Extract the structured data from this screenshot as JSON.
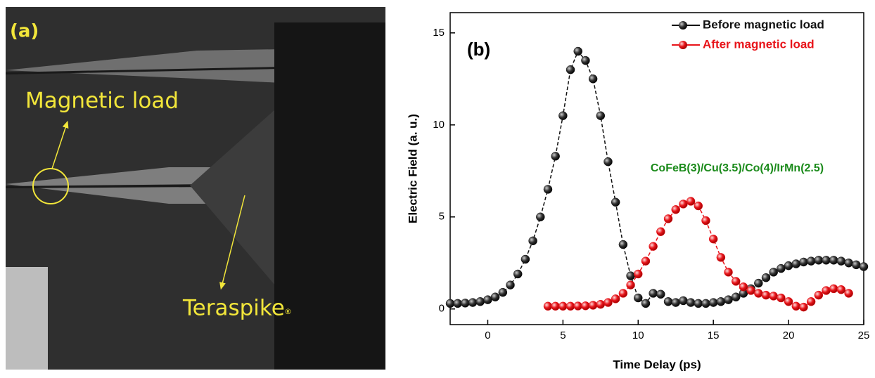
{
  "photo": {
    "label": "(a)",
    "annotations": [
      "Magnetic load",
      "Teraspike",
      "®"
    ]
  },
  "chart_data": {
    "type": "line",
    "panel_label": "(b)",
    "x_label": "Time Delay (ps)",
    "y_label": "Electric Field (a. u.)",
    "annotation": "CoFeB(3)/Cu(3.5)/Co(4)/IrMn(2.5)",
    "annotation_color": "#1a8a1a",
    "xlim": [
      -2.5,
      25
    ],
    "ylim": [
      -0.85,
      16.1
    ],
    "xticks": [
      0,
      5,
      10,
      15,
      20,
      25
    ],
    "yticks": [
      0,
      5,
      10,
      15
    ],
    "legend": "upper right",
    "series": [
      {
        "name": "Before magnetic load",
        "color": "#111111",
        "x": [
          -2.5,
          -2,
          -1.5,
          -1,
          -0.5,
          0,
          0.5,
          1,
          1.5,
          2,
          2.5,
          3,
          3.5,
          4,
          4.5,
          5,
          5.5,
          6,
          6.5,
          7,
          7.5,
          8,
          8.5,
          9,
          9.5,
          10,
          10.5,
          11,
          11.5,
          12,
          12.5,
          13,
          13.5,
          14,
          14.5,
          15,
          15.5,
          16,
          16.5,
          17,
          17.5,
          18,
          18.5,
          19,
          19.5,
          20,
          20.5,
          21,
          21.5,
          22,
          22.5,
          23,
          23.5,
          24,
          24.5,
          25
        ],
        "values": [
          0.3,
          0.3,
          0.32,
          0.35,
          0.4,
          0.5,
          0.65,
          0.9,
          1.3,
          1.9,
          2.7,
          3.7,
          5.0,
          6.5,
          8.3,
          10.5,
          13.0,
          14.0,
          13.5,
          12.5,
          10.5,
          8.0,
          5.8,
          3.5,
          1.8,
          0.6,
          0.3,
          0.85,
          0.8,
          0.4,
          0.35,
          0.45,
          0.35,
          0.3,
          0.3,
          0.35,
          0.4,
          0.5,
          0.65,
          0.85,
          1.1,
          1.4,
          1.7,
          2.0,
          2.2,
          2.35,
          2.45,
          2.55,
          2.6,
          2.65,
          2.65,
          2.65,
          2.6,
          2.5,
          2.4,
          2.3
        ]
      },
      {
        "name": "After magnetic load",
        "color": "#e8141a",
        "x": [
          4,
          4.5,
          5,
          5.5,
          6,
          6.5,
          7,
          7.5,
          8,
          8.5,
          9,
          9.5,
          10,
          10.5,
          11,
          11.5,
          12,
          12.5,
          13,
          13.5,
          14,
          14.5,
          15,
          15.5,
          16,
          16.5,
          17,
          17.5,
          18,
          18.5,
          19,
          19.5,
          20,
          20.5,
          21,
          21.5,
          22,
          22.5,
          23,
          23.5,
          24
        ],
        "values": [
          0.15,
          0.15,
          0.15,
          0.15,
          0.16,
          0.17,
          0.2,
          0.25,
          0.35,
          0.55,
          0.85,
          1.3,
          1.9,
          2.6,
          3.4,
          4.2,
          4.9,
          5.4,
          5.7,
          5.85,
          5.6,
          4.8,
          3.8,
          2.8,
          2.0,
          1.5,
          1.2,
          1.0,
          0.85,
          0.75,
          0.7,
          0.6,
          0.4,
          0.15,
          0.1,
          0.4,
          0.75,
          1.0,
          1.1,
          1.05,
          0.85
        ]
      }
    ]
  }
}
